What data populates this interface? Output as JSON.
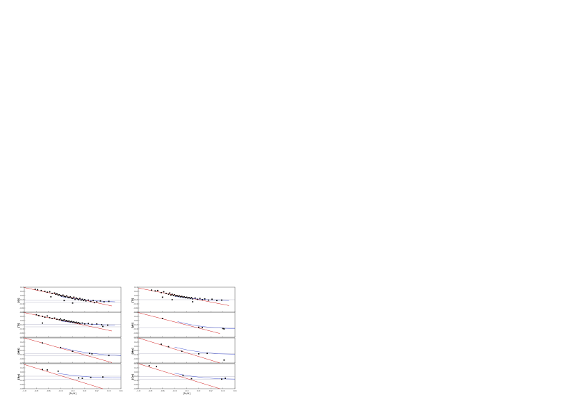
{
  "chart_data": [
    {
      "type": "scatter",
      "ylabel": "[Si]",
      "xlabel": "",
      "xlim": [
        -1.0,
        0.6
      ],
      "ylim": [
        -0.8,
        0.4
      ],
      "points": [
        [
          -0.82,
          0.3
        ],
        [
          -0.78,
          0.28
        ],
        [
          -0.72,
          0.24
        ],
        [
          -0.66,
          0.2
        ],
        [
          -0.62,
          0.16
        ],
        [
          -0.58,
          0.18
        ],
        [
          -0.54,
          0.1
        ],
        [
          -0.5,
          0.12
        ],
        [
          -0.48,
          0.06
        ],
        [
          -0.46,
          0.08
        ],
        [
          -0.44,
          0.02
        ],
        [
          -0.42,
          0.04
        ],
        [
          -0.4,
          0.0
        ],
        [
          -0.38,
          -0.02
        ],
        [
          -0.36,
          0.02
        ],
        [
          -0.34,
          -0.04
        ],
        [
          -0.32,
          -0.06
        ],
        [
          -0.3,
          -0.02
        ],
        [
          -0.28,
          -0.08
        ],
        [
          -0.26,
          -0.1
        ],
        [
          -0.24,
          -0.06
        ],
        [
          -0.22,
          -0.12
        ],
        [
          -0.2,
          -0.14
        ],
        [
          -0.18,
          -0.08
        ],
        [
          -0.16,
          -0.18
        ],
        [
          -0.14,
          -0.12
        ],
        [
          -0.12,
          -0.16
        ],
        [
          -0.1,
          -0.2
        ],
        [
          -0.08,
          -0.14
        ],
        [
          -0.06,
          -0.22
        ],
        [
          -0.04,
          -0.18
        ],
        [
          -0.02,
          -0.24
        ],
        [
          0.0,
          -0.2
        ],
        [
          0.02,
          -0.26
        ],
        [
          0.06,
          -0.22
        ],
        [
          0.1,
          -0.28
        ],
        [
          0.14,
          -0.24
        ],
        [
          0.2,
          -0.3
        ],
        [
          0.26,
          -0.26
        ],
        [
          0.32,
          -0.3
        ],
        [
          0.4,
          -0.28
        ],
        [
          -0.56,
          -0.06
        ],
        [
          -0.34,
          -0.24
        ],
        [
          -0.2,
          -0.36
        ],
        [
          0.16,
          -0.34
        ]
      ],
      "fits": [
        {
          "color": "#cc0000",
          "x": [
            -1.0,
            0.45
          ],
          "y": [
            0.38,
            -0.5
          ]
        },
        {
          "color": "#3344cc",
          "curve": true,
          "x": [
            -0.4,
            0.0,
            0.5
          ],
          "y": [
            -0.05,
            -0.22,
            -0.3
          ]
        }
      ],
      "hlines": [
        -0.23,
        -0.32
      ]
    },
    {
      "type": "scatter",
      "ylabel": "[Ti]",
      "xlabel": "",
      "xlim": [
        -1.0,
        0.6
      ],
      "ylim": [
        -0.8,
        0.4
      ],
      "points": [
        [
          -0.78,
          0.26
        ],
        [
          -0.72,
          0.22
        ],
        [
          -0.68,
          0.24
        ],
        [
          -0.62,
          0.14
        ],
        [
          -0.58,
          0.18
        ],
        [
          -0.54,
          0.1
        ],
        [
          -0.5,
          0.06
        ],
        [
          -0.48,
          0.12
        ],
        [
          -0.46,
          0.02
        ],
        [
          -0.44,
          0.06
        ],
        [
          -0.42,
          0.0
        ],
        [
          -0.4,
          0.04
        ],
        [
          -0.38,
          -0.02
        ],
        [
          -0.36,
          0.0
        ],
        [
          -0.34,
          -0.04
        ],
        [
          -0.32,
          -0.02
        ],
        [
          -0.3,
          -0.06
        ],
        [
          -0.28,
          -0.04
        ],
        [
          -0.26,
          -0.08
        ],
        [
          -0.24,
          -0.06
        ],
        [
          -0.22,
          -0.1
        ],
        [
          -0.2,
          -0.08
        ],
        [
          -0.18,
          -0.12
        ],
        [
          -0.16,
          -0.1
        ],
        [
          -0.14,
          -0.14
        ],
        [
          -0.12,
          -0.1
        ],
        [
          -0.1,
          -0.16
        ],
        [
          -0.06,
          -0.12
        ],
        [
          -0.02,
          -0.18
        ],
        [
          0.02,
          -0.14
        ],
        [
          0.06,
          -0.2
        ],
        [
          0.1,
          -0.16
        ],
        [
          0.16,
          -0.22
        ],
        [
          0.22,
          -0.18
        ],
        [
          0.3,
          -0.24
        ],
        [
          0.38,
          -0.22
        ],
        [
          -0.6,
          -0.08
        ],
        [
          -0.44,
          -0.2
        ],
        [
          -0.1,
          -0.3
        ]
      ],
      "fits": [
        {
          "color": "#cc0000",
          "x": [
            -1.0,
            0.5
          ],
          "y": [
            0.36,
            -0.48
          ]
        },
        {
          "color": "#3344cc",
          "curve": true,
          "x": [
            -0.4,
            0.0,
            0.5
          ],
          "y": [
            -0.04,
            -0.18,
            -0.24
          ]
        }
      ],
      "hlines": [
        -0.2
      ]
    },
    {
      "type": "scatter",
      "ylabel": "[Ti]",
      "xlabel": "",
      "xlim": [
        -1.0,
        0.6
      ],
      "ylim": [
        -0.8,
        0.4
      ],
      "points": [
        [
          -0.8,
          0.28
        ],
        [
          -0.76,
          0.24
        ],
        [
          -0.7,
          0.2
        ],
        [
          -0.66,
          0.16
        ],
        [
          -0.62,
          0.22
        ],
        [
          -0.58,
          0.14
        ],
        [
          -0.54,
          0.1
        ],
        [
          -0.5,
          0.12
        ],
        [
          -0.46,
          0.06
        ],
        [
          -0.42,
          0.04
        ],
        [
          -0.4,
          0.08
        ],
        [
          -0.38,
          0.02
        ],
        [
          -0.36,
          0.0
        ],
        [
          -0.34,
          0.04
        ],
        [
          -0.32,
          -0.02
        ],
        [
          -0.3,
          0.0
        ],
        [
          -0.28,
          -0.04
        ],
        [
          -0.26,
          -0.02
        ],
        [
          -0.24,
          -0.06
        ],
        [
          -0.22,
          -0.04
        ],
        [
          -0.2,
          -0.08
        ],
        [
          -0.18,
          -0.06
        ],
        [
          -0.16,
          -0.1
        ],
        [
          -0.14,
          -0.08
        ],
        [
          -0.12,
          -0.12
        ],
        [
          -0.1,
          -0.1
        ],
        [
          -0.08,
          -0.14
        ],
        [
          -0.04,
          -0.12
        ],
        [
          0.0,
          -0.16
        ],
        [
          0.06,
          -0.14
        ],
        [
          0.12,
          -0.18
        ],
        [
          0.2,
          -0.16
        ],
        [
          0.28,
          -0.2
        ],
        [
          0.38,
          -0.22
        ],
        [
          -0.7,
          -0.12
        ],
        [
          0.3,
          -0.28
        ]
      ],
      "fits": [
        {
          "color": "#cc0000",
          "x": [
            -1.0,
            0.45
          ],
          "y": [
            0.38,
            -0.5
          ]
        },
        {
          "color": "#3344cc",
          "curve": true,
          "x": [
            -0.4,
            0.0,
            0.5
          ],
          "y": [
            -0.02,
            -0.16,
            -0.22
          ]
        }
      ],
      "hlines": [
        -0.18,
        -0.3
      ]
    },
    {
      "type": "scatter",
      "ylabel": "[VII]",
      "xlabel": "",
      "xlim": [
        -1.0,
        0.6
      ],
      "ylim": [
        -0.8,
        0.4
      ],
      "points": [
        [
          -0.6,
          0.1
        ],
        [
          0.0,
          -0.32
        ],
        [
          0.06,
          -0.34
        ],
        [
          0.4,
          -0.38
        ],
        [
          0.42,
          -0.4
        ]
      ],
      "fits": [
        {
          "color": "#cc0000",
          "x": [
            -1.0,
            0.35
          ],
          "y": [
            0.38,
            -0.62
          ]
        },
        {
          "color": "#3344cc",
          "curve": true,
          "x": [
            -0.35,
            0.05,
            0.6
          ],
          "y": [
            -0.05,
            -0.33,
            -0.38
          ]
        }
      ],
      "hlines": [
        -0.35
      ]
    },
    {
      "type": "scatter",
      "ylabel": "[MII]",
      "xlabel": "",
      "xlim": [
        -1.0,
        0.6
      ],
      "ylim": [
        -0.8,
        0.4
      ],
      "points": [
        [
          -0.7,
          0.16
        ],
        [
          -0.4,
          -0.06
        ],
        [
          -0.2,
          -0.24
        ],
        [
          0.08,
          -0.34
        ],
        [
          0.12,
          -0.36
        ],
        [
          0.4,
          -0.44
        ]
      ],
      "fits": [
        {
          "color": "#cc0000",
          "x": [
            -1.0,
            0.45
          ],
          "y": [
            0.4,
            -0.78
          ]
        },
        {
          "color": "#3344cc",
          "curve": true,
          "x": [
            -0.4,
            0.05,
            0.6
          ],
          "y": [
            -0.06,
            -0.36,
            -0.44
          ]
        }
      ],
      "hlines": [
        -0.34,
        -0.46
      ]
    },
    {
      "type": "scatter",
      "ylabel": "[Mo]",
      "xlabel": "",
      "xlim": [
        -1.0,
        0.6
      ],
      "ylim": [
        -0.8,
        0.4
      ],
      "points": [
        [
          -0.62,
          0.1
        ],
        [
          -0.5,
          -0.02
        ],
        [
          -0.28,
          -0.24
        ],
        [
          0.0,
          -0.36
        ],
        [
          0.14,
          -0.34
        ],
        [
          0.42,
          -0.66
        ]
      ],
      "fits": [
        {
          "color": "#cc0000",
          "x": [
            -1.0,
            0.35
          ],
          "y": [
            0.4,
            -0.8
          ]
        },
        {
          "color": "#3344cc",
          "curve": true,
          "x": [
            -0.4,
            0.05,
            0.6
          ],
          "y": [
            -0.04,
            -0.34,
            -0.38
          ]
        }
      ],
      "hlines": [
        -0.36
      ]
    },
    {
      "type": "scatter",
      "ylabel": "[Ba]",
      "xlabel": "[Fe/H]",
      "xlim": [
        -1.0,
        0.6
      ],
      "ylim": [
        -0.8,
        0.4
      ],
      "points": [
        [
          -0.7,
          0.12
        ],
        [
          -0.62,
          0.1
        ],
        [
          -0.44,
          0.04
        ],
        [
          -0.1,
          -0.28
        ],
        [
          -0.04,
          -0.3
        ],
        [
          0.1,
          -0.26
        ],
        [
          0.3,
          -0.24
        ]
      ],
      "fits": [
        {
          "color": "#cc0000",
          "x": [
            -1.0,
            0.3
          ],
          "y": [
            0.36,
            -0.8
          ]
        },
        {
          "color": "#3344cc",
          "curve": true,
          "x": [
            -0.45,
            0.0,
            0.6
          ],
          "y": [
            -0.06,
            -0.24,
            -0.28
          ]
        }
      ],
      "hlines": [
        -0.2,
        -0.34
      ]
    },
    {
      "type": "scatter",
      "ylabel": "[Ce]",
      "xlabel": "[Fe/H]",
      "xlim": [
        -1.0,
        0.6
      ],
      "ylim": [
        -0.8,
        0.4
      ],
      "points": [
        [
          -0.82,
          0.3
        ],
        [
          -0.7,
          0.26
        ],
        [
          -0.26,
          -0.16
        ],
        [
          -0.12,
          -0.32
        ],
        [
          0.38,
          -0.34
        ],
        [
          0.44,
          -0.3
        ]
      ],
      "fits": [
        {
          "color": "#cc0000",
          "x": [
            -1.0,
            0.35
          ],
          "y": [
            0.4,
            -0.8
          ]
        },
        {
          "color": "#3344cc",
          "curve": true,
          "x": [
            -0.4,
            0.05,
            0.6
          ],
          "y": [
            -0.06,
            -0.3,
            -0.34
          ]
        }
      ],
      "hlines": [
        -0.22,
        -0.34
      ]
    }
  ],
  "axes": {
    "xticks": [
      "-1.0",
      "-0.8",
      "-0.6",
      "-0.4",
      "-0.2",
      "0.0",
      "0.2",
      "0.4",
      "0.6"
    ],
    "yticks": [
      "0.4",
      "0.2",
      "0.0",
      "-0.2",
      "-0.4",
      "-0.6",
      "-0.8"
    ]
  }
}
